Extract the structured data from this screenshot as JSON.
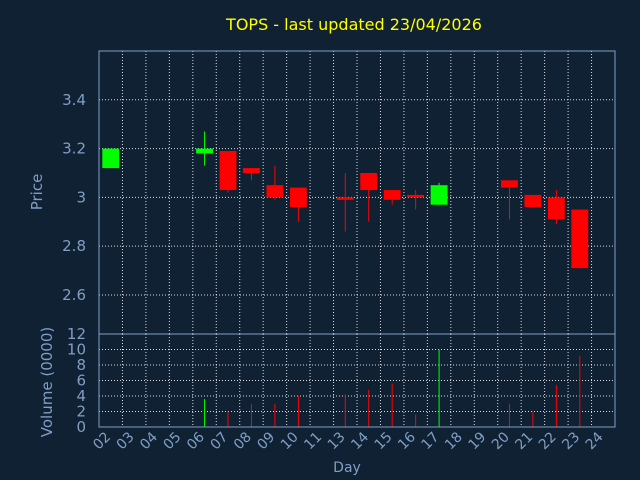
{
  "title": "TOPS - last updated 23/04/2026",
  "colors": {
    "background": "#0f2133",
    "title": "#ffff00",
    "axis_text": "#7f9fc4",
    "frame": "#7f9fc4",
    "grid": "#ffffff",
    "up": "#00ff00",
    "down": "#ff0000"
  },
  "chart_data": [
    {
      "type": "candlestick",
      "ylabel": "Price",
      "ylim": [
        2.44,
        3.6
      ],
      "yticks": [
        2.6,
        2.8,
        3,
        3.2,
        3.4
      ],
      "ytick_labels": [
        "2.6",
        "2.8",
        "3",
        "3.2",
        "3.4"
      ],
      "grid": true,
      "days": [
        "02",
        "03",
        "04",
        "05",
        "06",
        "07",
        "08",
        "09",
        "10",
        "11",
        "13",
        "14",
        "15",
        "16",
        "17",
        "18",
        "19",
        "20",
        "21",
        "22",
        "23",
        "24"
      ],
      "candles": [
        {
          "day": "02",
          "open": 3.12,
          "high": 3.2,
          "low": 3.12,
          "close": 3.2
        },
        {
          "day": "06",
          "open": 3.18,
          "high": 3.27,
          "low": 3.13,
          "close": 3.2
        },
        {
          "day": "07",
          "open": 3.19,
          "high": 3.19,
          "low": 3.02,
          "close": 3.03
        },
        {
          "day": "08",
          "open": 3.12,
          "high": 3.12,
          "low": 3.07,
          "close": 3.1
        },
        {
          "day": "09",
          "open": 3.05,
          "high": 3.13,
          "low": 2.99,
          "close": 3.0
        },
        {
          "day": "10",
          "open": 3.04,
          "high": 3.04,
          "low": 2.9,
          "close": 2.96
        },
        {
          "day": "13",
          "open": 3.0,
          "high": 3.1,
          "low": 2.86,
          "close": 2.99
        },
        {
          "day": "14",
          "open": 3.1,
          "high": 3.1,
          "low": 2.9,
          "close": 3.03
        },
        {
          "day": "15",
          "open": 3.03,
          "high": 3.03,
          "low": 2.97,
          "close": 2.99
        },
        {
          "day": "16",
          "open": 3.01,
          "high": 3.03,
          "low": 2.95,
          "close": 3.0
        },
        {
          "day": "17",
          "open": 2.97,
          "high": 3.06,
          "low": 2.97,
          "close": 3.05
        },
        {
          "day": "20",
          "open": 3.07,
          "high": 3.07,
          "low": 2.91,
          "close": 3.04
        },
        {
          "day": "21",
          "open": 3.01,
          "high": 3.01,
          "low": 2.96,
          "close": 2.96
        },
        {
          "day": "22",
          "open": 3.0,
          "high": 3.03,
          "low": 2.89,
          "close": 2.91
        },
        {
          "day": "23",
          "open": 2.95,
          "high": 2.95,
          "low": 2.71,
          "close": 2.71
        }
      ]
    },
    {
      "type": "bar",
      "ylabel": "Volume (0000)",
      "xlabel": "Day",
      "ylim": [
        0,
        12
      ],
      "yticks": [
        0,
        2,
        4,
        6,
        8,
        10,
        12
      ],
      "ytick_labels": [
        "0",
        "2",
        "4",
        "6",
        "8",
        "10",
        "12"
      ],
      "grid": true,
      "volumes": [
        {
          "day": "06",
          "value": 3.6,
          "dir": "up"
        },
        {
          "day": "07",
          "value": 2.0,
          "dir": "down"
        },
        {
          "day": "08",
          "value": 3.0,
          "dir": "down"
        },
        {
          "day": "09",
          "value": 3.0,
          "dir": "down"
        },
        {
          "day": "10",
          "value": 4.0,
          "dir": "down"
        },
        {
          "day": "13",
          "value": 4.2,
          "dir": "down"
        },
        {
          "day": "14",
          "value": 4.8,
          "dir": "down"
        },
        {
          "day": "15",
          "value": 5.6,
          "dir": "down"
        },
        {
          "day": "16",
          "value": 1.6,
          "dir": "down"
        },
        {
          "day": "17",
          "value": 10.0,
          "dir": "up"
        },
        {
          "day": "20",
          "value": 3.0,
          "dir": "down"
        },
        {
          "day": "21",
          "value": 2.0,
          "dir": "down"
        },
        {
          "day": "22",
          "value": 5.4,
          "dir": "down"
        },
        {
          "day": "23",
          "value": 9.2,
          "dir": "down"
        }
      ]
    }
  ]
}
